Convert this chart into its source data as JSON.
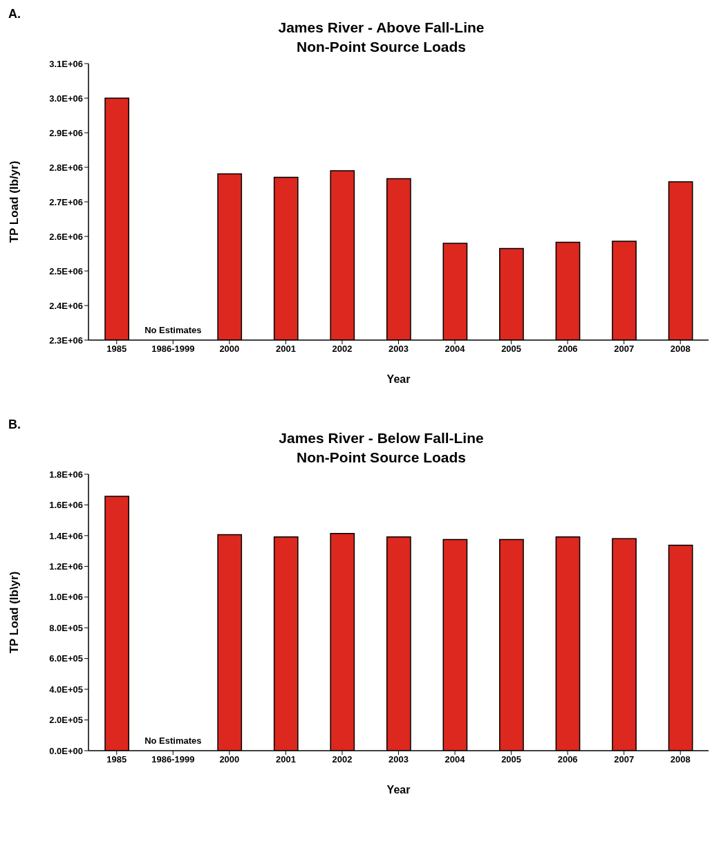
{
  "chart_data": [
    {
      "type": "bar",
      "title": "James River - Above Fall-Line\nNon-Point Source Loads",
      "xlabel": "Year",
      "ylabel": "TP Load (lb/yr)",
      "categories": [
        "1985",
        "1986-1999",
        "2000",
        "2001",
        "2002",
        "2003",
        "2004",
        "2005",
        "2006",
        "2007",
        "2008"
      ],
      "values": [
        3000000,
        null,
        2781000,
        2771000,
        2790000,
        2767000,
        2580000,
        2565000,
        2583000,
        2586000,
        2758000
      ],
      "color": "#dc281e",
      "ylim": [
        2300000,
        3100000
      ],
      "yticks": [
        {
          "value": 2300000,
          "label": "2.3E+06"
        },
        {
          "value": 2400000,
          "label": "2.4E+06"
        },
        {
          "value": 2500000,
          "label": "2.5E+06"
        },
        {
          "value": 2600000,
          "label": "2.6E+06"
        },
        {
          "value": 2700000,
          "label": "2.7E+06"
        },
        {
          "value": 2800000,
          "label": "2.8E+06"
        },
        {
          "value": 2900000,
          "label": "2.9E+06"
        },
        {
          "value": 3000000,
          "label": "3.0E+06"
        },
        {
          "value": 3100000,
          "label": "3.1E+06"
        }
      ],
      "grid": false,
      "legend": false,
      "annotations": [
        "A.",
        "No Estimates"
      ]
    },
    {
      "type": "bar",
      "title": "James River - Below Fall-Line\nNon-Point Source Loads",
      "xlabel": "Year",
      "ylabel": "TP Load (lb\\yr)",
      "categories": [
        "1985",
        "1986-1999",
        "2000",
        "2001",
        "2002",
        "2003",
        "2004",
        "2005",
        "2006",
        "2007",
        "2008"
      ],
      "values": [
        1656000,
        null,
        1406000,
        1392000,
        1414000,
        1392000,
        1375000,
        1375000,
        1392000,
        1380000,
        1338000
      ],
      "color": "#dc281e",
      "ylim": [
        0,
        1800000
      ],
      "yticks": [
        {
          "value": 0,
          "label": "0.0E+00"
        },
        {
          "value": 200000,
          "label": "2.0E+05"
        },
        {
          "value": 400000,
          "label": "4.0E+05"
        },
        {
          "value": 600000,
          "label": "6.0E+05"
        },
        {
          "value": 800000,
          "label": "8.0E+05"
        },
        {
          "value": 1000000,
          "label": "1.0E+06"
        },
        {
          "value": 1200000,
          "label": "1.2E+06"
        },
        {
          "value": 1400000,
          "label": "1.4E+06"
        },
        {
          "value": 1600000,
          "label": "1.6E+06"
        },
        {
          "value": 1800000,
          "label": "1.8E+06"
        }
      ],
      "grid": false,
      "legend": false,
      "annotations": [
        "B.",
        "No Estimates"
      ]
    }
  ]
}
